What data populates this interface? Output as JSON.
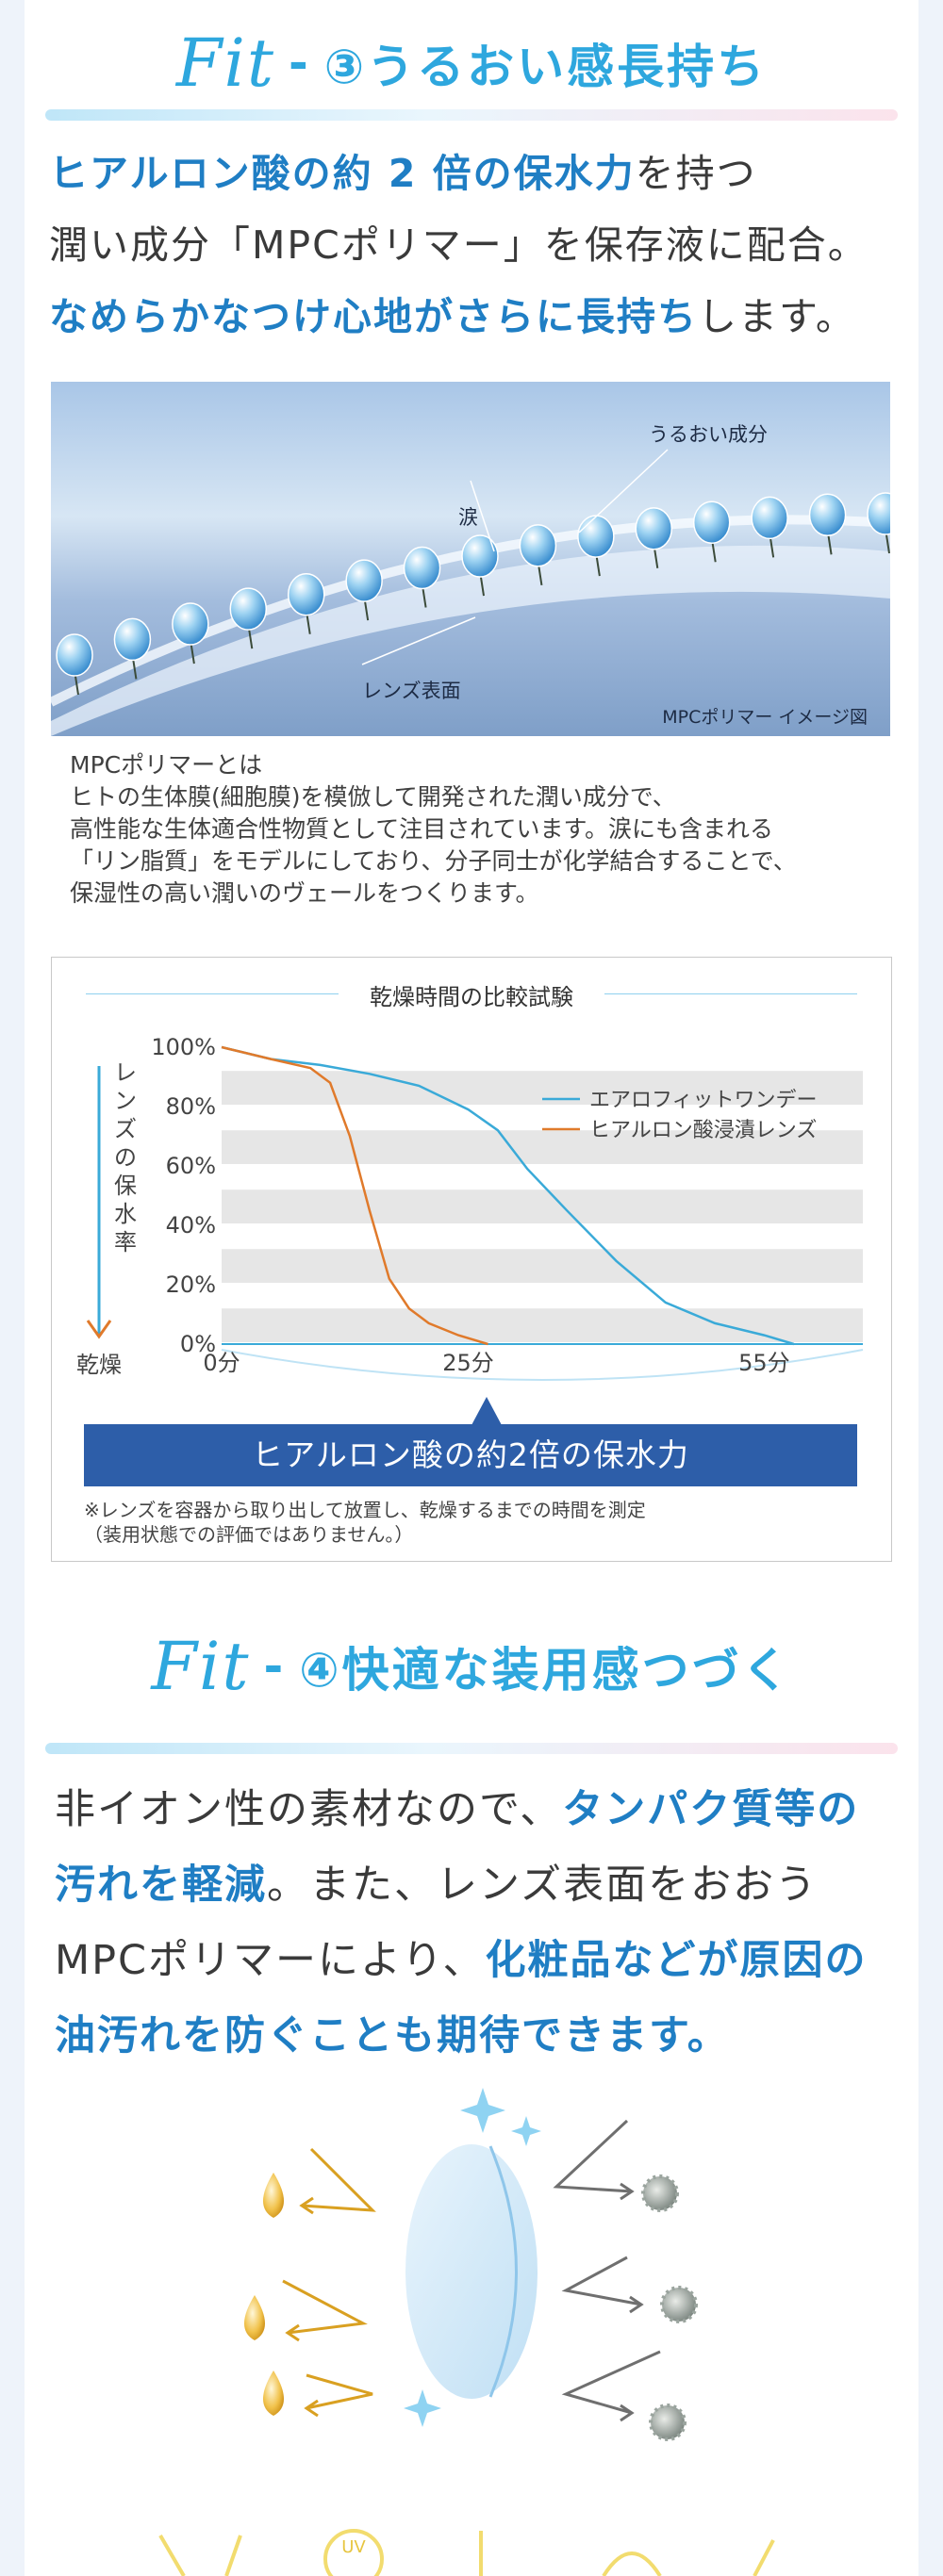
{
  "section3": {
    "fit_logo": "Fit",
    "dash": "-",
    "title": "③うるおい感長持ち",
    "lead": {
      "line1_blue": "ヒアルロン酸の約 2 倍の保水力",
      "line1_rest": "を持つ",
      "line2": "潤い成分「MPCポリマー」を保存液に配合。",
      "line3_blue": "なめらかなつけ心地がさらに長持ち",
      "line3_rest": "します。"
    },
    "image": {
      "label_moisture": "うるおい成分",
      "label_tears": "涙",
      "label_lens": "レンズ表面",
      "caption": "MPCポリマー イメージ図"
    },
    "note": [
      "MPCポリマーとは",
      "ヒトの生体膜(細胞膜)を模倣して開発された潤い成分で、",
      "高性能な生体適合性物質として注目されています。涙にも含まれる",
      "「リン脂質」をモデルにしており、分子同士が化学結合することで、",
      "保湿性の高い潤いのヴェールをつくります。"
    ]
  },
  "chart_data": {
    "type": "line",
    "title": "乾燥時間の比較試験",
    "ylabel": "レンズの保水率",
    "ylabel_bottom": "乾燥",
    "xlim": [
      0,
      65
    ],
    "ylim": [
      0,
      100
    ],
    "y_ticks": [
      "0%",
      "20%",
      "40%",
      "60%",
      "80%",
      "100%"
    ],
    "x_ticks": [
      {
        "value": 0,
        "label": "0分"
      },
      {
        "value": 25,
        "label": "25分"
      },
      {
        "value": 55,
        "label": "55分"
      }
    ],
    "grid": "horizontal bands",
    "legend": "top-right",
    "series": [
      {
        "name": "エアロフィットワンデー",
        "color": "#3aaad8",
        "x": [
          0,
          5,
          10,
          15,
          20,
          25,
          28,
          31,
          35,
          40,
          45,
          50,
          55,
          58
        ],
        "y": [
          100,
          96,
          94,
          91,
          87,
          79,
          72,
          59,
          45,
          28,
          14,
          7,
          3,
          0
        ]
      },
      {
        "name": "ヒアルロン酸浸漬レンズ",
        "color": "#e07a2b",
        "x": [
          0,
          5,
          9,
          11,
          13,
          15,
          17,
          19,
          21,
          24,
          27
        ],
        "y": [
          100,
          96,
          93,
          88,
          70,
          45,
          22,
          12,
          7,
          3,
          0
        ]
      }
    ],
    "banner": "ヒアルロン酸の約2倍の保水力",
    "footnote": [
      "※レンズを容器から取り出して放置し、乾燥するまでの時間を測定",
      "（装用状態での評価ではありません。）"
    ]
  },
  "section4": {
    "fit_logo": "Fit",
    "dash": "-",
    "title": "④快適な装用感つづく",
    "lead": {
      "l1_a": "非イオン性の素材なので、",
      "l1_b": "タンパク質等の",
      "l2_a": "汚れを軽減",
      "l2_b": "。また、レンズ表面をおおう",
      "l3_a": "MPCポリマーにより、",
      "l3_b": "化粧品などが原因の",
      "l4": "油汚れを防ぐことも期待できます。"
    },
    "colors": {
      "blue": "#1f7ec4",
      "title": "#2ea7de",
      "gold": "#d9a021",
      "gray_particle": "#8e9690"
    },
    "bottom_badge": "UV"
  }
}
